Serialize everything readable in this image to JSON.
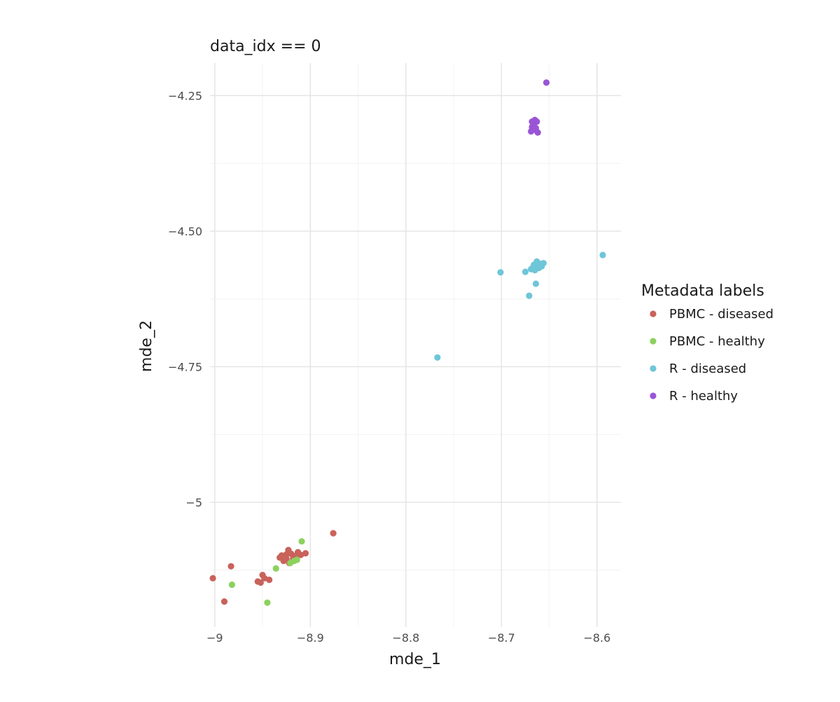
{
  "chart_data": {
    "type": "scatter",
    "title": "data_idx == 0",
    "xlabel": "mde_1",
    "ylabel": "mde_2",
    "xlim": [
      -9.005,
      -8.575
    ],
    "ylim": [
      -5.23,
      -4.19
    ],
    "xticks": [
      -9.0,
      -8.9,
      -8.8,
      -8.7,
      -8.6
    ],
    "xtick_labels": [
      "−9",
      "−8.9",
      "−8.8",
      "−8.7",
      "−8.6"
    ],
    "yticks": [
      -4.25,
      -4.5,
      -4.75,
      -5.0
    ],
    "ytick_labels": [
      "−4.25",
      "−4.50",
      "−4.75",
      "−5"
    ],
    "grid": true,
    "legend": {
      "title": "Metadata labels",
      "position": "right"
    },
    "series": [
      {
        "name": "PBMC - diseased",
        "color": "#c9625a",
        "points": [
          [
            -8.876,
            -5.057
          ],
          [
            -8.983,
            -5.118
          ],
          [
            -9.002,
            -5.14
          ],
          [
            -8.99,
            -5.183
          ],
          [
            -8.95,
            -5.134
          ],
          [
            -8.948,
            -5.14
          ],
          [
            -8.952,
            -5.148
          ],
          [
            -8.943,
            -5.143
          ],
          [
            -8.955,
            -5.146
          ],
          [
            -8.93,
            -5.098
          ],
          [
            -8.925,
            -5.096
          ],
          [
            -8.923,
            -5.088
          ],
          [
            -8.92,
            -5.095
          ],
          [
            -8.915,
            -5.1
          ],
          [
            -8.913,
            -5.092
          ],
          [
            -8.91,
            -5.097
          ],
          [
            -8.905,
            -5.094
          ],
          [
            -8.918,
            -5.104
          ],
          [
            -8.928,
            -5.108
          ],
          [
            -8.922,
            -5.112
          ],
          [
            -8.932,
            -5.102
          ],
          [
            -8.916,
            -5.099
          ],
          [
            -8.925,
            -5.104
          ]
        ]
      },
      {
        "name": "PBMC - healthy",
        "color": "#8cd15f",
        "points": [
          [
            -8.909,
            -5.072
          ],
          [
            -8.936,
            -5.122
          ],
          [
            -8.982,
            -5.152
          ],
          [
            -8.945,
            -5.185
          ],
          [
            -8.917,
            -5.108
          ],
          [
            -8.921,
            -5.112
          ],
          [
            -8.914,
            -5.106
          ]
        ]
      },
      {
        "name": "R - diseased",
        "color": "#6ec6d8",
        "points": [
          [
            -8.594,
            -4.544
          ],
          [
            -8.701,
            -4.576
          ],
          [
            -8.675,
            -4.575
          ],
          [
            -8.664,
            -4.597
          ],
          [
            -8.671,
            -4.619
          ],
          [
            -8.767,
            -4.733
          ],
          [
            -8.66,
            -4.56
          ],
          [
            -8.663,
            -4.556
          ],
          [
            -8.667,
            -4.567
          ],
          [
            -8.658,
            -4.565
          ],
          [
            -8.665,
            -4.572
          ],
          [
            -8.669,
            -4.57
          ],
          [
            -8.661,
            -4.568
          ],
          [
            -8.656,
            -4.559
          ],
          [
            -8.662,
            -4.563
          ],
          [
            -8.666,
            -4.562
          ]
        ]
      },
      {
        "name": "R - healthy",
        "color": "#9a55d6",
        "points": [
          [
            -8.653,
            -4.226
          ],
          [
            -8.665,
            -4.295
          ],
          [
            -8.667,
            -4.301
          ],
          [
            -8.663,
            -4.298
          ],
          [
            -8.668,
            -4.308
          ],
          [
            -8.665,
            -4.313
          ],
          [
            -8.669,
            -4.316
          ],
          [
            -8.662,
            -4.318
          ],
          [
            -8.666,
            -4.305
          ],
          [
            -8.664,
            -4.31
          ],
          [
            -8.668,
            -4.298
          ]
        ]
      }
    ]
  }
}
